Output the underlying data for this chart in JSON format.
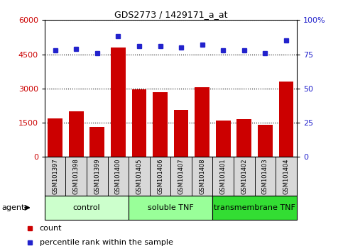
{
  "title": "GDS2773 / 1429171_a_at",
  "categories": [
    "GSM101397",
    "GSM101398",
    "GSM101399",
    "GSM101400",
    "GSM101405",
    "GSM101406",
    "GSM101407",
    "GSM101408",
    "GSM101401",
    "GSM101402",
    "GSM101403",
    "GSM101404"
  ],
  "bar_values": [
    1700,
    2000,
    1300,
    4800,
    2950,
    2850,
    2050,
    3050,
    1600,
    1650,
    1400,
    3300
  ],
  "percentile_values": [
    78,
    79,
    76,
    88,
    81,
    81,
    80,
    82,
    78,
    78,
    76,
    85
  ],
  "bar_color": "#cc0000",
  "dot_color": "#2222cc",
  "left_ylim": [
    0,
    6000
  ],
  "right_ylim": [
    0,
    100
  ],
  "left_yticks": [
    0,
    1500,
    3000,
    4500,
    6000
  ],
  "right_yticks": [
    0,
    25,
    50,
    75,
    100
  ],
  "groups": [
    {
      "label": "control",
      "start": 0,
      "end": 4,
      "color": "#ccffcc"
    },
    {
      "label": "soluble TNF",
      "start": 4,
      "end": 8,
      "color": "#99ff99"
    },
    {
      "label": "transmembrane TNF",
      "start": 8,
      "end": 12,
      "color": "#33dd33"
    }
  ],
  "xlabel_agent": "agent",
  "legend_bar_label": "count",
  "legend_dot_label": "percentile rank within the sample",
  "tick_label_bg": "#d8d8d8",
  "grid_color": "#000000"
}
